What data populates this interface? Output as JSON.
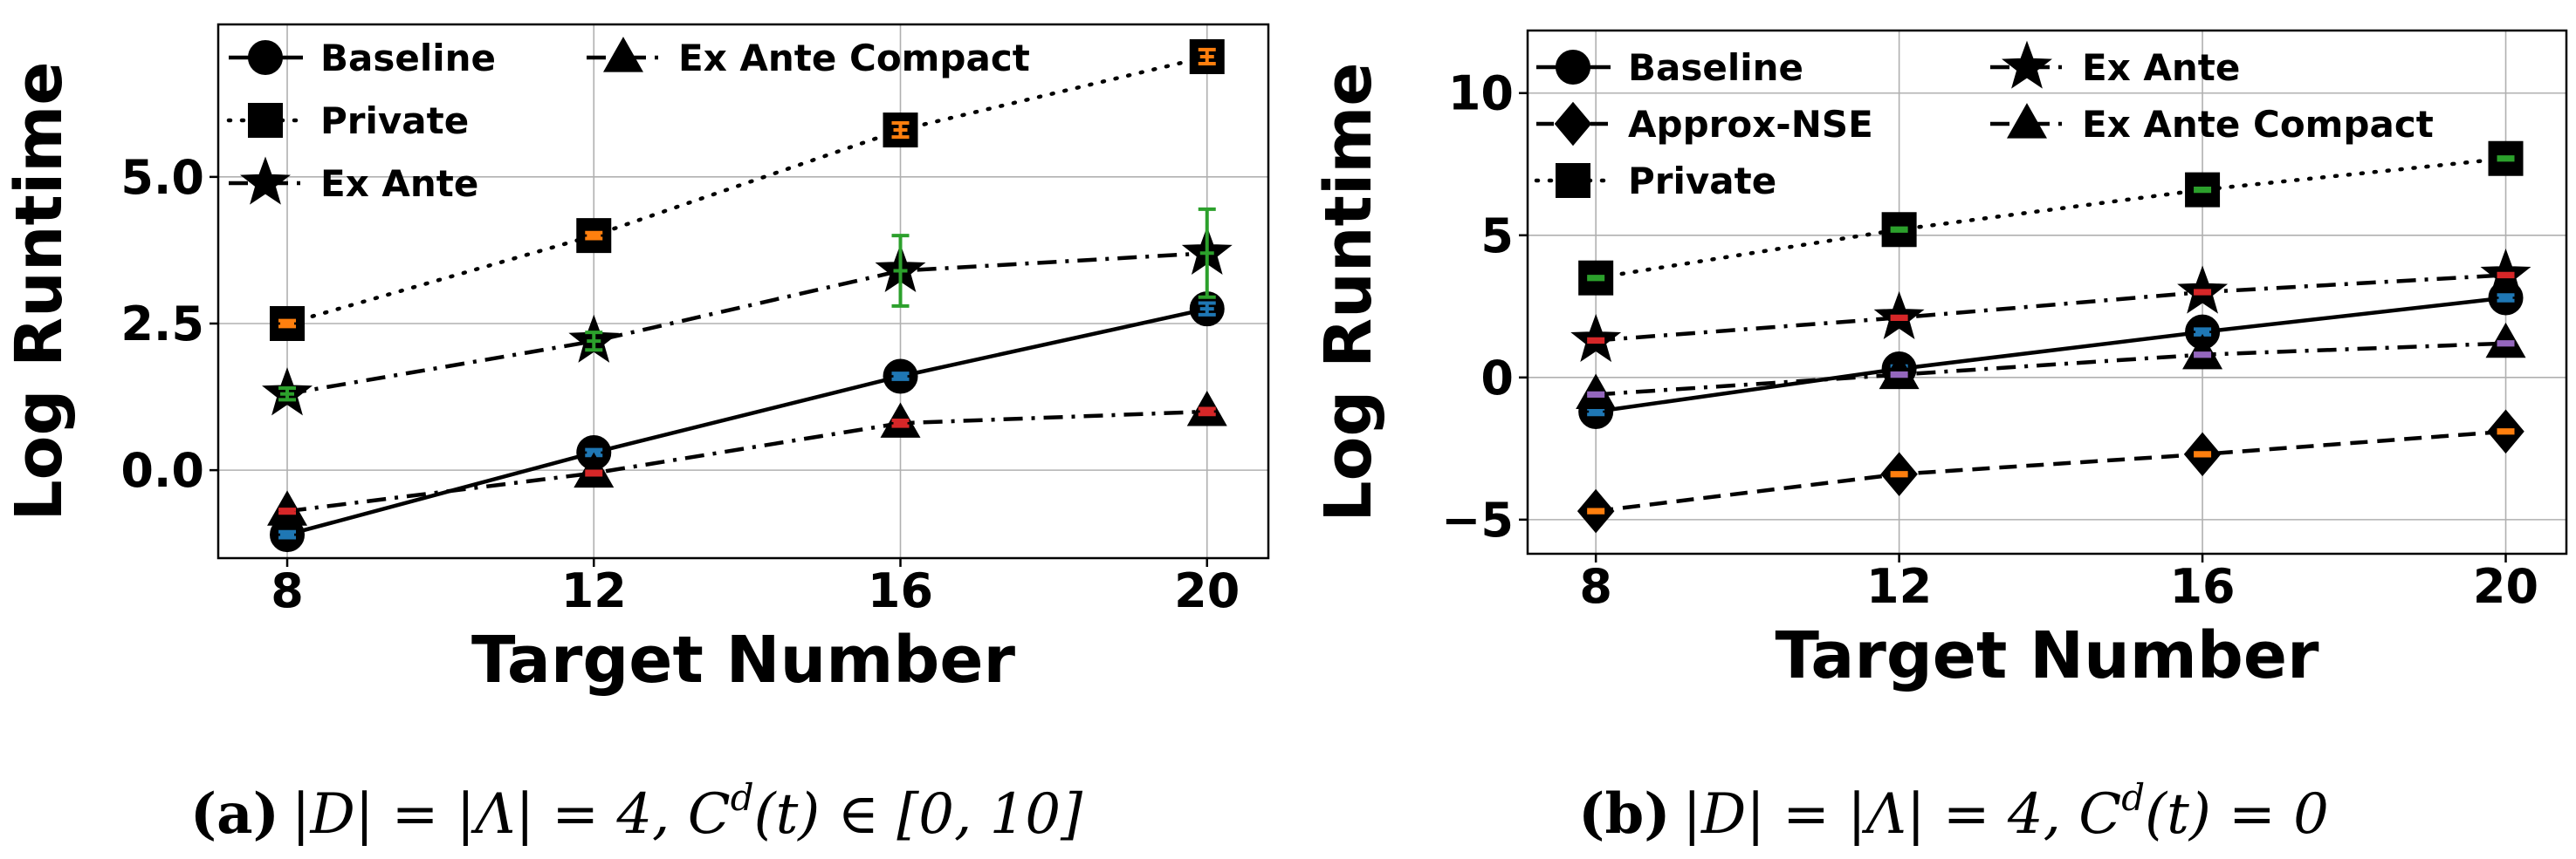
{
  "chart_data": [
    {
      "type": "line",
      "xlabel": "Target Number",
      "ylabel": "Log Runtime",
      "x": [
        8,
        12,
        16,
        20
      ],
      "xticks": [
        "8",
        "12",
        "16",
        "20"
      ],
      "yticks": [
        0.0,
        2.5,
        5.0
      ],
      "ytick_labels": [
        "0.0",
        "2.5",
        "5.0"
      ],
      "xlim": [
        7.1,
        20.8
      ],
      "ylim": [
        -1.5,
        7.6
      ],
      "grid": true,
      "legend": {
        "placement": "top-left",
        "columns": 2
      },
      "caption": {
        "label": "(a)",
        "text": "|D| = |Λ| = 4, C",
        "sup": "d",
        "tail": "(t) ∈ [0, 10]"
      },
      "series": [
        {
          "name": "Baseline",
          "marker": "circle",
          "linestyle": "solid",
          "color": "#1f77b4",
          "values": [
            -1.1,
            0.3,
            1.6,
            2.75
          ],
          "err": [
            0.05,
            0.05,
            0.05,
            0.1
          ]
        },
        {
          "name": "Private",
          "marker": "square",
          "linestyle": "dotted",
          "color": "#ff7f0e",
          "values": [
            2.5,
            4.0,
            5.8,
            7.05
          ],
          "err": [
            0.05,
            0.05,
            0.12,
            0.12
          ]
        },
        {
          "name": "Ex Ante",
          "marker": "star",
          "linestyle": "dashdot",
          "color": "#2ca02c",
          "values": [
            1.3,
            2.2,
            3.4,
            3.7
          ],
          "err": [
            0.1,
            0.15,
            0.6,
            0.75
          ]
        },
        {
          "name": "Ex Ante Compact",
          "marker": "triangle",
          "linestyle": "dashdot",
          "color": "#d62728",
          "values": [
            -0.7,
            -0.05,
            0.8,
            1.0
          ],
          "err": [
            0.03,
            0.03,
            0.05,
            0.05
          ]
        }
      ]
    },
    {
      "type": "line",
      "xlabel": "Target Number",
      "ylabel": "Log Runtime",
      "x": [
        8,
        12,
        16,
        20
      ],
      "xticks": [
        "8",
        "12",
        "16",
        "20"
      ],
      "yticks": [
        -5,
        0,
        5,
        10
      ],
      "ytick_labels": [
        "−5",
        "0",
        "5",
        "10"
      ],
      "xlim": [
        7.1,
        20.8
      ],
      "ylim": [
        -6.2,
        12.2
      ],
      "grid": true,
      "legend": {
        "placement": "top-left",
        "columns": 2
      },
      "caption": {
        "label": "(b)",
        "text": "|D| = |Λ| = 4, C",
        "sup": "d",
        "tail": "(t) = 0"
      },
      "series": [
        {
          "name": "Baseline",
          "marker": "circle",
          "linestyle": "solid",
          "color": "#1f77b4",
          "values": [
            -1.2,
            0.3,
            1.6,
            2.8
          ],
          "err": [
            0.1,
            0.1,
            0.1,
            0.1
          ]
        },
        {
          "name": "Approx-NSE",
          "marker": "diamond",
          "linestyle": "dashed",
          "color": "#ff7f0e",
          "values": [
            -4.7,
            -3.4,
            -2.7,
            -1.9
          ],
          "err": [
            0.05,
            0.05,
            0.05,
            0.05
          ]
        },
        {
          "name": "Private",
          "marker": "square",
          "linestyle": "dotted",
          "color": "#2ca02c",
          "values": [
            3.5,
            5.2,
            6.6,
            7.7
          ],
          "err": [
            0.05,
            0.05,
            0.05,
            0.05
          ]
        },
        {
          "name": "Ex Ante",
          "marker": "star",
          "linestyle": "dashdot",
          "color": "#d62728",
          "values": [
            1.3,
            2.1,
            3.0,
            3.6
          ],
          "err": [
            0.05,
            0.05,
            0.05,
            0.05
          ]
        },
        {
          "name": "Ex Ante Compact",
          "marker": "triangle",
          "linestyle": "dashdot",
          "color": "#9467bd",
          "values": [
            -0.6,
            0.1,
            0.8,
            1.2
          ],
          "err": [
            0.05,
            0.05,
            0.05,
            0.05
          ]
        }
      ]
    }
  ]
}
